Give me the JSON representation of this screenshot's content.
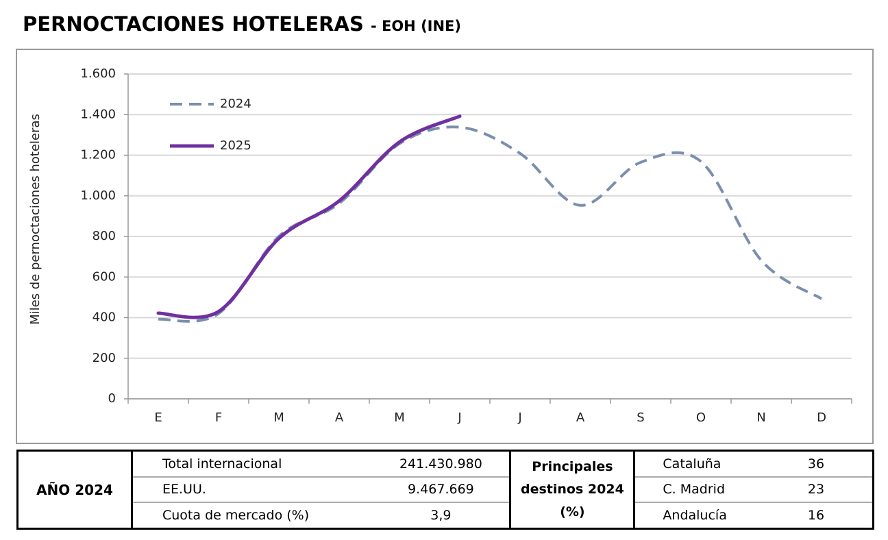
{
  "chart_data": {
    "type": "line",
    "title": "PERNOCTACIONES HOTELERAS",
    "subtitle": "- EOH (INE)",
    "ylabel": "Miles de pernoctaciones  hoteleras",
    "categories": [
      "E",
      "F",
      "M",
      "A",
      "M",
      "J",
      "J",
      "A",
      "S",
      "O",
      "N",
      "D"
    ],
    "series": [
      {
        "name": "2024",
        "color": "#7a8fad",
        "dashed": true,
        "values": [
          392,
          420,
          800,
          963,
          1257,
          1338,
          1209,
          953,
          1165,
          1169,
          682,
          493
        ]
      },
      {
        "name": "2025",
        "color": "#7030a0",
        "dashed": false,
        "values": [
          422,
          430,
          790,
          975,
          1265,
          1392,
          null,
          null,
          null,
          null,
          null,
          null
        ]
      }
    ],
    "ylim": [
      0,
      1600
    ],
    "yticks": [
      0,
      200,
      400,
      600,
      800,
      {
        "value": 1000,
        "label": "1.000"
      },
      {
        "value": 1200,
        "label": "1.200"
      },
      {
        "value": 1400,
        "label": "1.400"
      },
      {
        "value": 1600,
        "label": "1.600"
      }
    ],
    "grid": true,
    "legend": "upper left"
  },
  "table": {
    "heading": "AÑO 2024",
    "rows": [
      [
        "Total internacional",
        "241.430.980"
      ],
      [
        "EE.UU.",
        "9.467.669"
      ],
      [
        "Cuota de mercado (%)",
        "3,9"
      ]
    ],
    "destinations_heading": [
      "Principales",
      "destinos 2024",
      "(%)"
    ],
    "destinations": [
      [
        "Cataluña",
        "36"
      ],
      [
        "C. Madrid",
        "23"
      ],
      [
        "Andalucía",
        "16"
      ]
    ]
  }
}
